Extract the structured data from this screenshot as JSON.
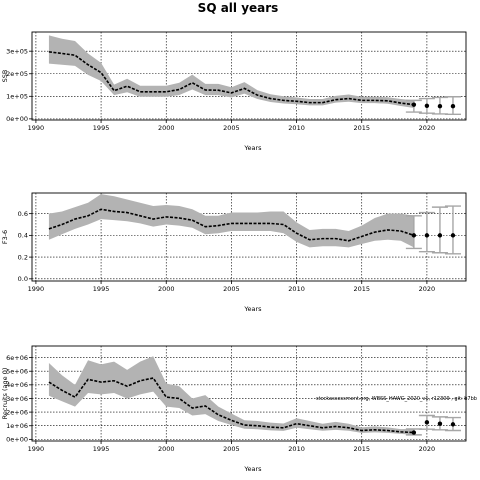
{
  "figure": {
    "title": "SQ all years",
    "annotation": "stockassessment.org, WBSS_HAWG_2020_v1, r12309 , git: b7bb"
  },
  "chart_data": [
    {
      "type": "line",
      "name": "ssb-panel",
      "xlabel": "Years",
      "ylabel": "SSB",
      "xlim": [
        1989.7,
        2023
      ],
      "ylim": [
        -5000,
        385000
      ],
      "xticks": [
        1990,
        1995,
        2000,
        2005,
        2010,
        2015,
        2020
      ],
      "yticks": [
        0,
        100000,
        200000,
        300000
      ],
      "ytick_labels": [
        "0e+00",
        "1e+05",
        "2e+05",
        "3e+05"
      ],
      "grid": true,
      "x": [
        1991,
        1992,
        1993,
        1994,
        1995,
        1996,
        1997,
        1998,
        1999,
        2000,
        2001,
        2002,
        2003,
        2004,
        2005,
        2006,
        2007,
        2008,
        2009,
        2010,
        2011,
        2012,
        2013,
        2014,
        2015,
        2016,
        2017,
        2018,
        2019
      ],
      "values": [
        297000,
        290000,
        282000,
        240000,
        205000,
        125000,
        145000,
        120000,
        120000,
        120000,
        130000,
        160000,
        128000,
        127000,
        115000,
        135000,
        105000,
        90000,
        82000,
        78000,
        72000,
        72000,
        85000,
        90000,
        82000,
        82000,
        80000,
        70000,
        63000
      ],
      "lower": [
        245000,
        240000,
        235000,
        195000,
        168000,
        105000,
        118000,
        98000,
        98000,
        98000,
        106000,
        130000,
        105000,
        105000,
        95000,
        112000,
        88000,
        75000,
        68000,
        65000,
        60000,
        60000,
        72000,
        76000,
        70000,
        70000,
        67000,
        57000,
        48000
      ],
      "upper": [
        370000,
        355000,
        345000,
        290000,
        248000,
        152000,
        178000,
        147000,
        147000,
        147000,
        160000,
        196000,
        155000,
        155000,
        140000,
        163000,
        127000,
        109000,
        100000,
        95000,
        88000,
        88000,
        102000,
        108000,
        98000,
        98000,
        96000,
        88000,
        82000
      ],
      "forecast": {
        "x": [
          2019,
          2020,
          2021,
          2022
        ],
        "values": [
          63000,
          58000,
          56000,
          56000
        ],
        "lower": [
          30000,
          25000,
          22000,
          20000
        ],
        "upper": [
          82000,
          90000,
          95000,
          98000
        ]
      }
    },
    {
      "type": "line",
      "name": "fbar-panel",
      "xlabel": "Years",
      "ylabel": "F3-6",
      "xlim": [
        1989.7,
        2023
      ],
      "ylim": [
        -0.02,
        0.79
      ],
      "xticks": [
        1990,
        1995,
        2000,
        2005,
        2010,
        2015,
        2020
      ],
      "yticks": [
        0,
        0.2,
        0.4,
        0.6
      ],
      "ytick_labels": [
        "0.0",
        "0.2",
        "0.4",
        "0.6"
      ],
      "grid": true,
      "x": [
        1991,
        1992,
        1993,
        1994,
        1995,
        1996,
        1997,
        1998,
        1999,
        2000,
        2001,
        2002,
        2003,
        2004,
        2005,
        2006,
        2007,
        2008,
        2009,
        2010,
        2011,
        2012,
        2013,
        2014,
        2015,
        2016,
        2017,
        2018,
        2019
      ],
      "values": [
        0.46,
        0.5,
        0.55,
        0.58,
        0.64,
        0.62,
        0.61,
        0.58,
        0.55,
        0.57,
        0.56,
        0.54,
        0.48,
        0.49,
        0.51,
        0.51,
        0.51,
        0.51,
        0.5,
        0.42,
        0.36,
        0.37,
        0.37,
        0.35,
        0.39,
        0.43,
        0.45,
        0.44,
        0.4
      ],
      "lower": [
        0.36,
        0.41,
        0.46,
        0.5,
        0.55,
        0.54,
        0.53,
        0.51,
        0.48,
        0.5,
        0.49,
        0.47,
        0.41,
        0.42,
        0.44,
        0.44,
        0.44,
        0.44,
        0.42,
        0.34,
        0.29,
        0.3,
        0.3,
        0.29,
        0.32,
        0.35,
        0.36,
        0.35,
        0.29
      ],
      "upper": [
        0.6,
        0.62,
        0.66,
        0.7,
        0.78,
        0.76,
        0.73,
        0.7,
        0.67,
        0.68,
        0.67,
        0.64,
        0.58,
        0.58,
        0.61,
        0.61,
        0.61,
        0.62,
        0.62,
        0.52,
        0.45,
        0.46,
        0.46,
        0.44,
        0.49,
        0.56,
        0.6,
        0.6,
        0.58
      ],
      "forecast": {
        "x": [
          2019,
          2020,
          2021,
          2022
        ],
        "values": [
          0.4,
          0.4,
          0.4,
          0.4
        ],
        "lower": [
          0.28,
          0.25,
          0.24,
          0.23
        ],
        "upper": [
          0.58,
          0.61,
          0.66,
          0.67
        ]
      }
    },
    {
      "type": "line",
      "name": "recruitment-panel",
      "xlabel": "Years",
      "ylabel": "Recruits (age 0)",
      "xlim": [
        1989.7,
        2023
      ],
      "ylim": [
        -120000,
        6850000
      ],
      "xticks": [
        1990,
        1995,
        2000,
        2005,
        2010,
        2015,
        2020
      ],
      "yticks": [
        0,
        1000000,
        2000000,
        3000000,
        4000000,
        5000000,
        6000000
      ],
      "ytick_labels": [
        "0e+00",
        "1e+06",
        "2e+06",
        "3e+06",
        "4e+06",
        "5e+06",
        "6e+06"
      ],
      "grid": true,
      "x": [
        1991,
        1992,
        1993,
        1994,
        1995,
        1996,
        1997,
        1998,
        1999,
        2000,
        2001,
        2002,
        2003,
        2004,
        2005,
        2006,
        2007,
        2008,
        2009,
        2010,
        2011,
        2012,
        2013,
        2014,
        2015,
        2016,
        2017,
        2018,
        2019
      ],
      "values": [
        4200000,
        3600000,
        3100000,
        4400000,
        4200000,
        4300000,
        3900000,
        4300000,
        4500000,
        3100000,
        3000000,
        2300000,
        2450000,
        1800000,
        1400000,
        1050000,
        1000000,
        900000,
        850000,
        1150000,
        1000000,
        850000,
        950000,
        850000,
        650000,
        700000,
        650000,
        550000,
        500000
      ],
      "lower": [
        3200000,
        2800000,
        2400000,
        3400000,
        3300000,
        3400000,
        3000000,
        3300000,
        3500000,
        2400000,
        2300000,
        1750000,
        1850000,
        1350000,
        1050000,
        780000,
        740000,
        660000,
        620000,
        850000,
        740000,
        630000,
        700000,
        630000,
        480000,
        510000,
        480000,
        400000,
        330000
      ],
      "upper": [
        5600000,
        4700000,
        4000000,
        5800000,
        5500000,
        5700000,
        5100000,
        5700000,
        6100000,
        4100000,
        3900000,
        3000000,
        3250000,
        2400000,
        1900000,
        1400000,
        1350000,
        1230000,
        1160000,
        1550000,
        1350000,
        1150000,
        1280000,
        1150000,
        880000,
        950000,
        880000,
        750000,
        760000
      ],
      "forecast": {
        "x": [
          2019,
          2020,
          2021,
          2022
        ],
        "values": [
          500000,
          1250000,
          1150000,
          1100000
        ],
        "lower": [
          330000,
          750000,
          700000,
          650000
        ],
        "upper": [
          760000,
          1750000,
          1650000,
          1600000
        ]
      }
    }
  ]
}
